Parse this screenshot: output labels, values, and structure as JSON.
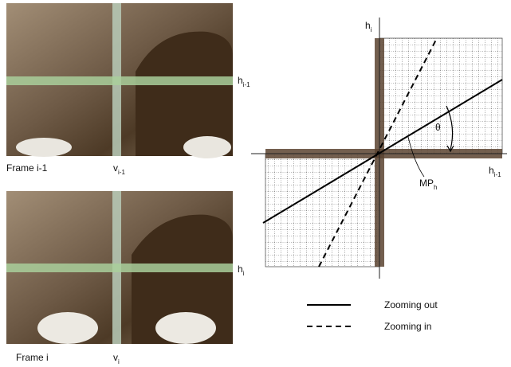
{
  "frames": [
    {
      "caption": "Frame i-1",
      "vertical_label": {
        "base": "v",
        "sub": "i-1"
      },
      "horizontal_label": {
        "base": "h",
        "sub": "i-1"
      }
    },
    {
      "caption": "Frame i",
      "vertical_label": {
        "base": "v",
        "sub": "i"
      },
      "horizontal_label": {
        "base": "h",
        "sub": "i"
      }
    }
  ],
  "plot": {
    "y_axis_label": {
      "base": "h",
      "sub": "i"
    },
    "x_axis_label": {
      "base": "h",
      "sub": "i-1"
    },
    "angle_label": "θ",
    "point_label": {
      "base": "MP",
      "sub": "h"
    }
  },
  "legend": [
    {
      "label": "Zooming out",
      "style": "solid"
    },
    {
      "label": "Zooming in",
      "style": "dashed"
    }
  ]
}
